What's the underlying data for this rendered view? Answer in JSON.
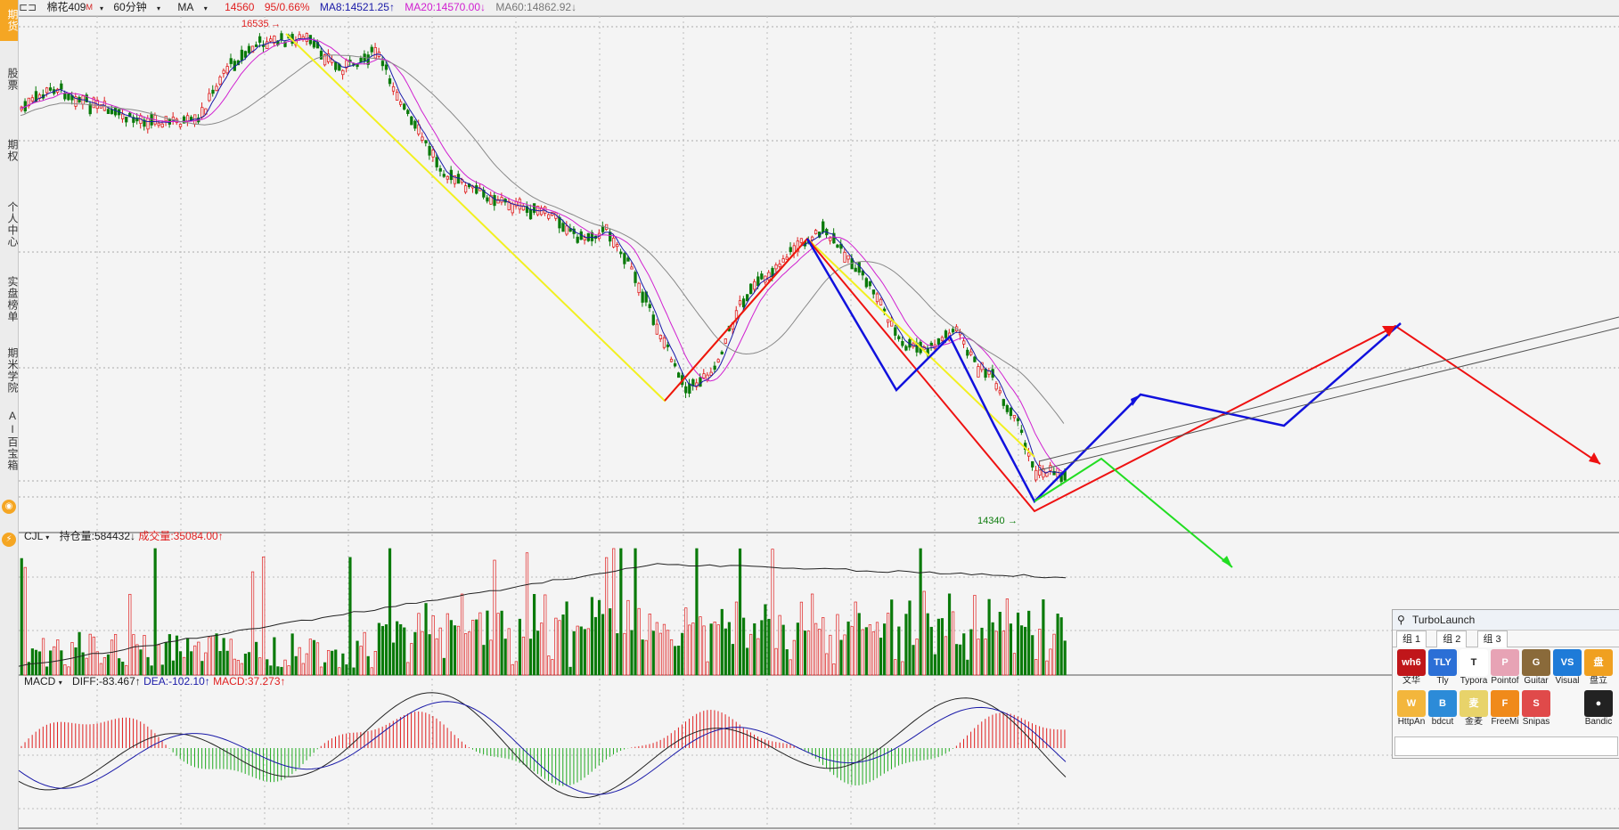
{
  "sidebar": {
    "items": [
      {
        "label": "期货"
      },
      {
        "label": "股票"
      },
      {
        "label": "期权"
      },
      {
        "label": "个人中心"
      },
      {
        "label": "实盘榜单"
      },
      {
        "label": "期米学院"
      },
      {
        "label": "AI百宝箱"
      }
    ]
  },
  "topbar": {
    "symbol": "棉花409",
    "badge": "M",
    "period": "60分钟",
    "indicator": "MA",
    "price": "14560",
    "change": "95/0.66%",
    "ma8": "MA8:14521.25↑",
    "ma20": "MA20:14570.00↓",
    "ma60": "MA60:14862.92↓"
  },
  "price_chart": {
    "high_label": "16535",
    "low_label": "14340"
  },
  "volume_panel": {
    "name": "CJL",
    "open_interest": "持仓量:584432↓",
    "volume": "成交量:35084.00↑"
  },
  "macd_panel": {
    "name": "MACD",
    "diff": "DIFF:-83.467↑",
    "dea": "DEA:-102.10↑",
    "macd": "MACD:37.273↑"
  },
  "turbolaunch": {
    "title": "TurboLaunch",
    "tabs": [
      "组 1",
      "组 2",
      "组 3"
    ],
    "apps": [
      {
        "label": "文华",
        "icon": "wh6",
        "color": "#c0161a"
      },
      {
        "label": "Tly",
        "icon": "TLY",
        "color": "#2b6fd6"
      },
      {
        "label": "Typora",
        "icon": "T",
        "color": "#ffffff"
      },
      {
        "label": "Pointof",
        "icon": "P",
        "color": "#e7a3b5"
      },
      {
        "label": "Guitar",
        "icon": "G",
        "color": "#8a6a3a"
      },
      {
        "label": "Visual",
        "icon": "VS",
        "color": "#1e7bd8"
      },
      {
        "label": "盘立",
        "icon": "盘",
        "color": "#f0a020"
      },
      {
        "label": "HttpAn",
        "icon": "W",
        "color": "#f3b63c"
      },
      {
        "label": "bdcut",
        "icon": "B",
        "color": "#2c8bd8"
      },
      {
        "label": "金麦",
        "icon": "麦",
        "color": "#e8d36a"
      },
      {
        "label": "FreeMi",
        "icon": "F",
        "color": "#f08a1a"
      },
      {
        "label": "Snipas",
        "icon": "S",
        "color": "#e04a4a"
      },
      {
        "label": "Bandic",
        "icon": "●",
        "color": "#222222"
      }
    ]
  },
  "colors": {
    "ma8": "#1a1aa8",
    "ma20": "#d020d0",
    "ma60": "#888888",
    "up": "#e02020",
    "down": "#0a7a0a",
    "wave_yellow": "#f2f020",
    "wave_red": "#ee1111",
    "wave_blue": "#1111dd",
    "wave_green": "#22dd22"
  }
}
